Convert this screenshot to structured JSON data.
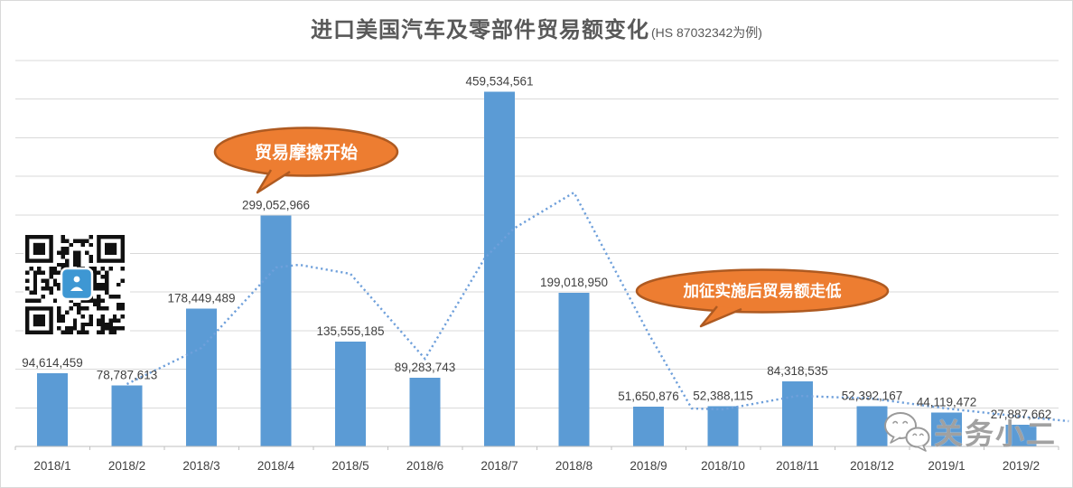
{
  "title": {
    "main": "进口美国汽车及零部件贸易额变化",
    "suffix": "(HS 87032342为例)"
  },
  "annotations": [
    {
      "id": "trade-friction-start",
      "text": "贸易摩擦开始"
    },
    {
      "id": "tariff-decline",
      "text": "加征实施后贸易额走低"
    }
  ],
  "watermark": {
    "icon": "wechat-icon",
    "text": "关务小二"
  },
  "qr_code": {
    "present": true,
    "center_icon": "person-badge",
    "center_color": "#3E97D3"
  },
  "colors": {
    "bar": "#5B9BD5",
    "trend_line": "#6FA0DB",
    "gridline": "#D9D9D9",
    "axis": "#BFBFBF",
    "data_label": "#404040",
    "category_label": "#404040",
    "title": "#595959",
    "bubble_fill": "#ED7D31",
    "bubble_border": "#AE5A21",
    "bubble_text": "#FFFFFF"
  },
  "chart_data": {
    "type": "bar",
    "title": "进口美国汽车及零部件贸易额变化 (HS 87032342为例)",
    "categories": [
      "2018/1",
      "2018/2",
      "2018/3",
      "2018/4",
      "2018/5",
      "2018/6",
      "2018/7",
      "2018/8",
      "2018/9",
      "2018/10",
      "2018/11",
      "2018/12",
      "2019/1",
      "2019/2"
    ],
    "values": [
      94614459,
      78787613,
      178449489,
      299052966,
      135555185,
      89283743,
      459534561,
      199018950,
      51650876,
      52388115,
      84318535,
      52392167,
      44119472,
      27887662
    ],
    "xlabel": "",
    "ylabel": "",
    "ylim": [
      0,
      500000000
    ],
    "gridline_step": 50000000,
    "grid": true,
    "legend": "none",
    "data_labels_visible": true,
    "trend_line": {
      "style": "dotted",
      "values_estimated": true,
      "note": "decorative dotted guide line; points are [category_index, estimated_value]",
      "points": [
        [
          1,
          80800000
        ],
        [
          2,
          127600000
        ],
        [
          3,
          231900000
        ],
        [
          3.31,
          235400000
        ],
        [
          4,
          223700000
        ],
        [
          5,
          113600000
        ],
        [
          5.8,
          243600000
        ],
        [
          6.19,
          282200000
        ],
        [
          7,
          329000000
        ],
        [
          8,
          146400000
        ],
        [
          8.58,
          49200000
        ],
        [
          9,
          48000000
        ],
        [
          10,
          65600000
        ],
        [
          11,
          62100000
        ],
        [
          12,
          49200000
        ],
        [
          13,
          38600000
        ],
        [
          13.64,
          32800000
        ]
      ]
    }
  }
}
